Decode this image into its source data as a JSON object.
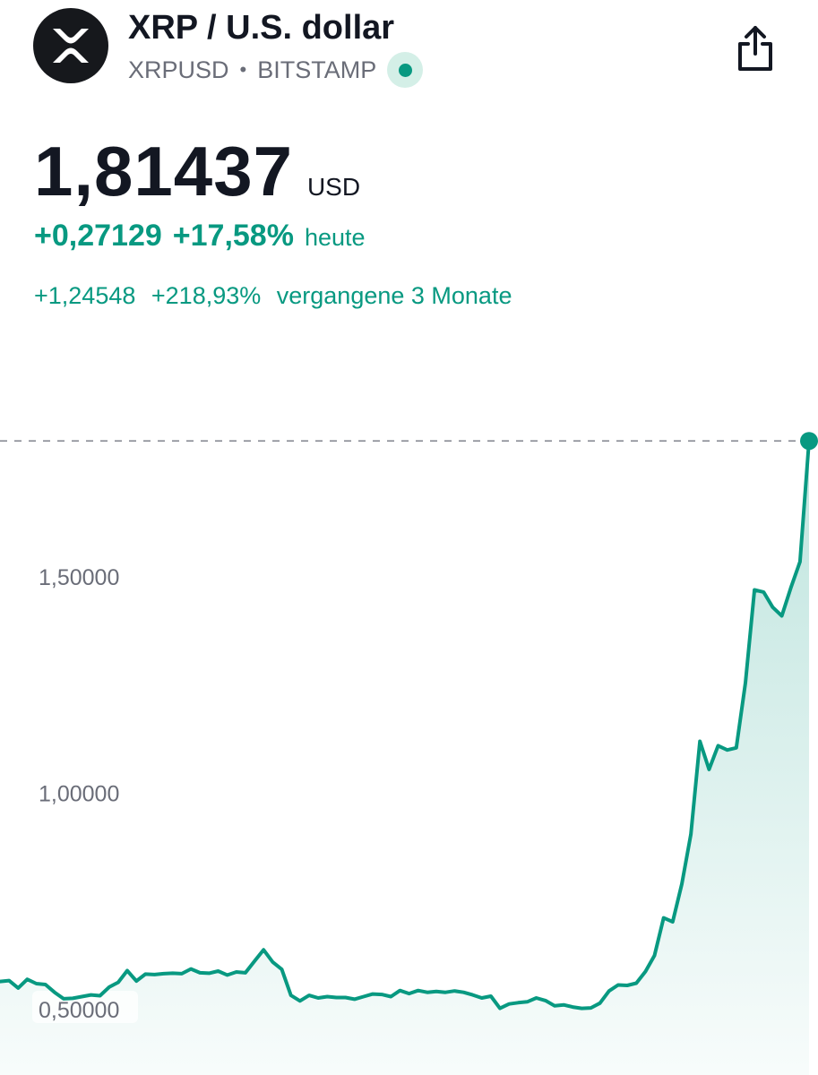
{
  "header": {
    "logo_icon": "xrp-logo-icon",
    "title": "XRP / U.S. dollar",
    "symbol": "XRPUSD",
    "separator": "•",
    "exchange": "BITSTAMP",
    "live_status_icon": "live-dot-icon",
    "share_icon": "share-icon"
  },
  "quote": {
    "price": "1,81437",
    "currency": "USD",
    "change_today_abs": "+0,27129",
    "change_today_pct": "+17,58%",
    "change_today_label": "heute",
    "change_period_abs": "+1,24548",
    "change_period_pct": "+218,93%",
    "change_period_label": "vergangene 3 Monate"
  },
  "colors": {
    "accent": "#089981",
    "text": "#131722",
    "muted": "#6a6d78"
  },
  "chart_data": {
    "type": "area",
    "y_tick_values": [
      0.5,
      1.0,
      1.5
    ],
    "y_tick_labels": [
      "0,50000",
      "1,00000",
      "1,50000"
    ],
    "ylim": [
      0.4,
      2.0
    ],
    "last_value": 1.81437,
    "series": [
      {
        "values": [
          0.565,
          0.567,
          0.55,
          0.57,
          0.56,
          0.558,
          0.54,
          0.525,
          0.526,
          0.53,
          0.534,
          0.532,
          0.552,
          0.563,
          0.59,
          0.566,
          0.582,
          0.581,
          0.583,
          0.584,
          0.583,
          0.594,
          0.585,
          0.584,
          0.589,
          0.58,
          0.587,
          0.585,
          0.612,
          0.638,
          0.61,
          0.593,
          0.533,
          0.52,
          0.533,
          0.527,
          0.53,
          0.528,
          0.528,
          0.524,
          0.53,
          0.536,
          0.535,
          0.53,
          0.544,
          0.537,
          0.544,
          0.54,
          0.542,
          0.54,
          0.543,
          0.54,
          0.534,
          0.527,
          0.531,
          0.503,
          0.513,
          0.516,
          0.518,
          0.527,
          0.521,
          0.509,
          0.511,
          0.506,
          0.503,
          0.504,
          0.515,
          0.543,
          0.557,
          0.556,
          0.561,
          0.588,
          0.625,
          0.712,
          0.703,
          0.79,
          0.905,
          1.12,
          1.055,
          1.11,
          1.1,
          1.105,
          1.255,
          1.47,
          1.465,
          1.43,
          1.41,
          1.475,
          1.535,
          1.81437
        ]
      }
    ]
  }
}
